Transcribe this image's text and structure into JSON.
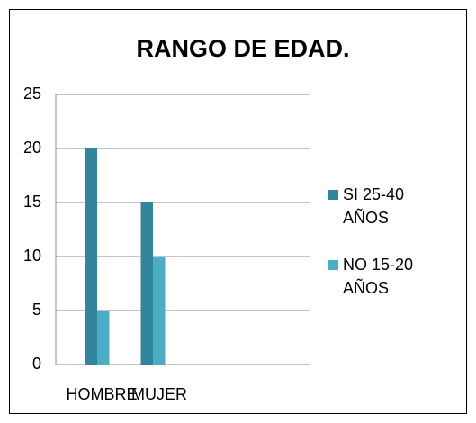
{
  "chart_data": {
    "type": "bar",
    "title": "RANGO DE EDAD.",
    "categories": [
      "HOMBRE",
      "MUJER"
    ],
    "series": [
      {
        "name": "SI 25-40 AÑOS",
        "color": "#31859c",
        "values": [
          20,
          15
        ]
      },
      {
        "name": "NO 15-20 AÑOS",
        "color": "#4bacc6",
        "values": [
          5,
          10
        ]
      }
    ],
    "ylim": [
      0,
      25
    ],
    "yticks": [
      0,
      5,
      10,
      15,
      20,
      25
    ],
    "grid": true,
    "legend": "right"
  }
}
